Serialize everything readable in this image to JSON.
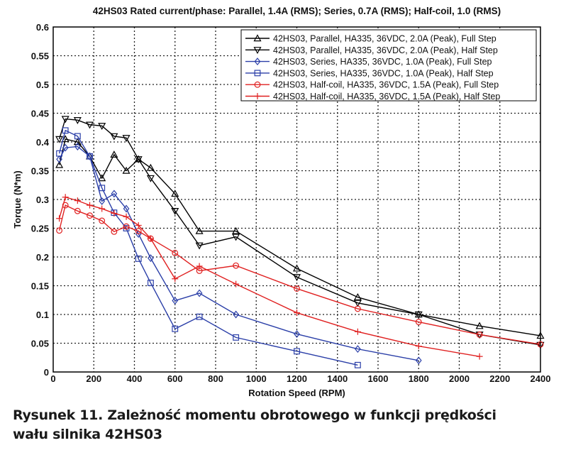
{
  "chart_data": {
    "type": "line",
    "title": "42HS03 Rated current/phase: Parallel, 1.4A (RMS); Series, 0.7A (RMS); Half-coil, 1.0 (RMS)",
    "xlabel": "Rotation Speed (RPM)",
    "ylabel": "Torque (N*m)",
    "xlim": [
      0,
      2400
    ],
    "ylim": [
      0,
      0.6
    ],
    "xticks": [
      "0",
      "200",
      "400",
      "600",
      "800",
      "1000",
      "1200",
      "1400",
      "1600",
      "1800",
      "2000",
      "2200",
      "2400"
    ],
    "yticks": [
      "0",
      "0.05",
      "0.1",
      "0.15",
      "0.2",
      "0.25",
      "0.3",
      "0.35",
      "0.4",
      "0.45",
      "0.5",
      "0.55",
      "0.6"
    ],
    "grid": true,
    "legend_position": "top-right",
    "series": [
      {
        "name": "42HS03, Parallel, HA335, 36VDC, 2.0A (Peak), Full Step",
        "color": "#000000",
        "marker": "triangle-up",
        "x": [
          30,
          60,
          120,
          180,
          240,
          300,
          360,
          420,
          480,
          600,
          720,
          900,
          1200,
          1500,
          1800,
          2100,
          2400
        ],
        "y": [
          0.36,
          0.405,
          0.4,
          0.375,
          0.337,
          0.378,
          0.35,
          0.37,
          0.355,
          0.31,
          0.245,
          0.245,
          0.18,
          0.13,
          0.1,
          0.08,
          0.063
        ]
      },
      {
        "name": "42HS03, Parallel, HA335, 36VDC, 2.0A (Peak), Half Step",
        "color": "#000000",
        "marker": "triangle-down",
        "x": [
          30,
          60,
          120,
          180,
          240,
          300,
          360,
          420,
          480,
          600,
          720,
          900,
          1200,
          1500,
          1800,
          2100,
          2400
        ],
        "y": [
          0.405,
          0.44,
          0.438,
          0.43,
          0.428,
          0.41,
          0.407,
          0.37,
          0.337,
          0.28,
          0.22,
          0.235,
          0.165,
          0.12,
          0.1,
          0.065,
          0.047
        ]
      },
      {
        "name": "42HS03, Series, HA335, 36VDC, 1.0A (Peak), Full Step",
        "color": "#2b3fa8",
        "marker": "diamond",
        "x": [
          30,
          60,
          120,
          180,
          240,
          300,
          360,
          420,
          480,
          600,
          720,
          900,
          1200,
          1500,
          1800
        ],
        "y": [
          0.37,
          0.39,
          0.392,
          0.375,
          0.297,
          0.31,
          0.284,
          0.24,
          0.198,
          0.124,
          0.137,
          0.1,
          0.066,
          0.04,
          0.02
        ]
      },
      {
        "name": "42HS03, Series, HA335, 36VDC, 1.0A (Peak), Half Step",
        "color": "#2b3fa8",
        "marker": "square",
        "x": [
          30,
          60,
          120,
          180,
          240,
          300,
          360,
          420,
          480,
          600,
          720,
          900,
          1200,
          1500
        ],
        "y": [
          0.38,
          0.42,
          0.41,
          0.375,
          0.32,
          0.277,
          0.25,
          0.197,
          0.155,
          0.075,
          0.096,
          0.06,
          0.036,
          0.012
        ]
      },
      {
        "name": "42HS03, Half-coil, HA335, 36VDC, 1.5A (Peak), Full Step",
        "color": "#e02020",
        "marker": "circle",
        "x": [
          30,
          60,
          120,
          180,
          240,
          300,
          360,
          420,
          480,
          600,
          720,
          900,
          1200,
          1500,
          1800,
          2100,
          2400
        ],
        "y": [
          0.246,
          0.29,
          0.28,
          0.272,
          0.263,
          0.244,
          0.253,
          0.245,
          0.232,
          0.207,
          0.176,
          0.185,
          0.145,
          0.11,
          0.087,
          0.065,
          0.048
        ]
      },
      {
        "name": "42HS03, Half-coil, HA335, 36VDC, 1.5A (Peak), Half Step",
        "color": "#e02020",
        "marker": "plus",
        "x": [
          30,
          60,
          120,
          180,
          240,
          300,
          360,
          420,
          480,
          600,
          720,
          900,
          1200,
          1500,
          1800,
          2100
        ],
        "y": [
          0.267,
          0.304,
          0.298,
          0.29,
          0.284,
          0.276,
          0.27,
          0.255,
          0.232,
          0.162,
          0.184,
          0.153,
          0.103,
          0.07,
          0.045,
          0.027
        ]
      }
    ]
  },
  "caption": {
    "line1": "Rysunek 11. Zależność momentu obrotowego w funkcji prędkości",
    "line2": "wału silnika 42HS03"
  }
}
